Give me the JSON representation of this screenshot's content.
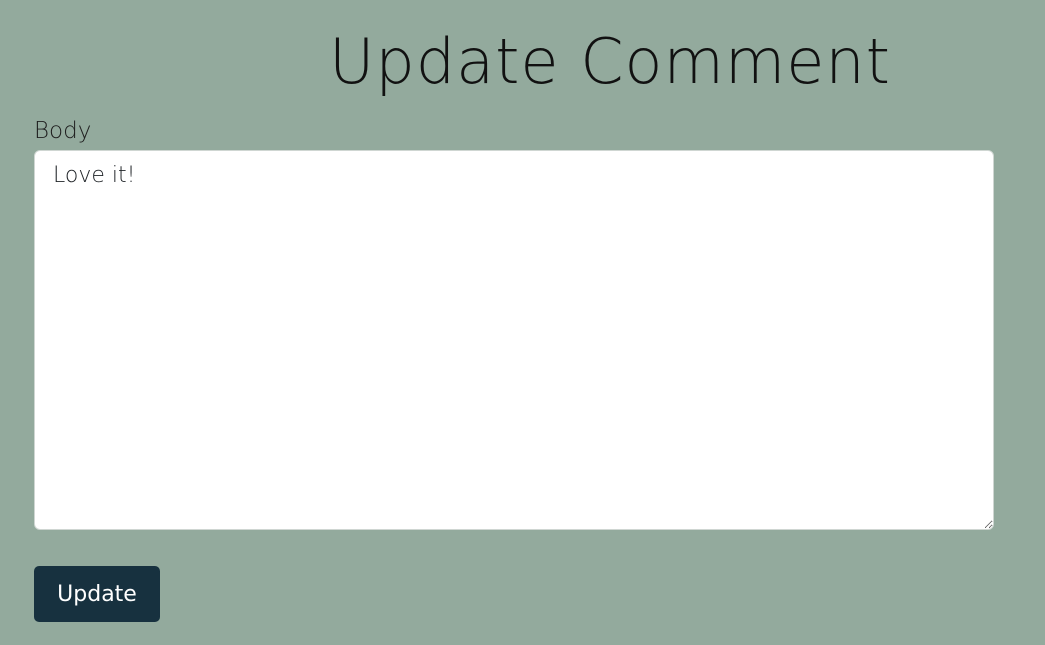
{
  "page": {
    "title": "Update Comment"
  },
  "form": {
    "body_label": "Body",
    "body_value": "Love it!",
    "submit_label": "Update"
  },
  "colors": {
    "background": "#93aa9d",
    "button": "#17313f",
    "textarea": "#ffffff"
  }
}
